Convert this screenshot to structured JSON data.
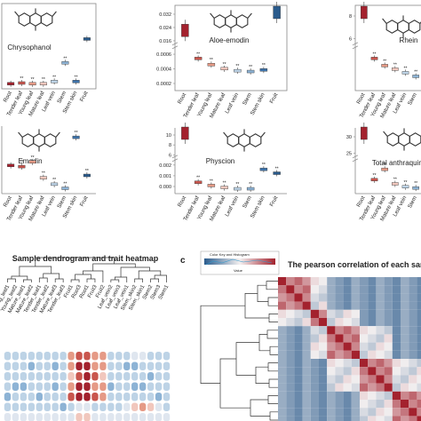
{
  "colors": {
    "dark_red": "#a3222e",
    "red": "#c9564e",
    "salmon": "#e59a86",
    "pale_red": "#f1c7bd",
    "pale_blue": "#bdd3e6",
    "light_blue": "#8db3d5",
    "blue": "#3f74ab",
    "dark_blue": "#2a5b8c",
    "grid": "#888888",
    "text": "#222222"
  },
  "chart_data": [
    {
      "type": "box",
      "panel": "top-left",
      "compound": "Chrysophanol",
      "categories": [
        "Root",
        "Tender leaf",
        "Young leaf",
        "Mature leaf",
        "Leaf vein",
        "Stem",
        "Stem skin",
        "Fruit"
      ],
      "values": [
        0.02,
        0.03,
        0.02,
        0.02,
        0.05,
        0.3,
        0.05,
        0.62
      ],
      "significance": [
        "",
        "**",
        "**",
        "**",
        "**",
        "**",
        "**",
        ""
      ],
      "ylim": [
        0,
        1
      ],
      "tick_labels_shown": false
    },
    {
      "type": "box",
      "panel": "top-center",
      "compound": "Aloe-emodin",
      "categories": [
        "Root",
        "Tender leaf",
        "Young leaf",
        "Mature leaf",
        "Leaf vein",
        "Stem",
        "Stem skin",
        "Fruit"
      ],
      "values": [
        0.019,
        0.0007,
        0.00055,
        0.00045,
        0.0004,
        0.00038,
        0.00042,
        0.025
      ],
      "significance": [
        "",
        "**",
        "**",
        "**",
        "**",
        "**",
        "**",
        ""
      ],
      "y_ticks_upper": [
        "0.032",
        "0.024",
        "0.016"
      ],
      "y_ticks_lower": [
        "0.0006",
        "0.0004",
        "0.0002"
      ],
      "axis_break": true
    },
    {
      "type": "box",
      "panel": "top-right",
      "compound": "Rhein",
      "categories": [
        "Root",
        "Tender leaf",
        "Young leaf",
        "Mature leaf",
        "Leaf vein",
        "Stem"
      ],
      "values": [
        8.2,
        0.4,
        0.3,
        0.25,
        0.2,
        0.15
      ],
      "significance": [
        "",
        "**",
        "**",
        "**",
        "**",
        "**"
      ],
      "y_ticks": [
        "8",
        "6"
      ],
      "axis_break": true
    },
    {
      "type": "box",
      "panel": "middle-left",
      "compound": "Emodin",
      "categories": [
        "Root",
        "Tender leaf",
        "Young leaf",
        "Mature leaf",
        "Leaf vein",
        "Stem",
        "Stem skin",
        "Fruit"
      ],
      "values": [
        0.42,
        0.4,
        0.48,
        0.21,
        0.1,
        0.03,
        0.9,
        0.25
      ],
      "significance": [
        "",
        "**",
        "**",
        "**",
        "**",
        "**",
        "**",
        "**"
      ],
      "ylim": [
        0,
        1
      ],
      "tick_labels_shown": false
    },
    {
      "type": "box",
      "panel": "middle-center",
      "compound": "Physcion",
      "categories": [
        "Root",
        "Tender leaf",
        "Young leaf",
        "Mature leaf",
        "Leaf vein",
        "Stem",
        "Stem skin",
        "Fruit"
      ],
      "values": [
        8.0,
        0.0006,
        0.00035,
        0.0002,
        0.0001,
        0.0001,
        0.0016,
        0.0013
      ],
      "significance": [
        "",
        "**",
        "**",
        "**",
        "**",
        "**",
        "**",
        "**"
      ],
      "y_ticks_upper": [
        "10",
        "8",
        "6"
      ],
      "y_ticks_lower": [
        "0.002",
        "0.001",
        "0.000"
      ],
      "axis_break": true
    },
    {
      "type": "box",
      "panel": "middle-right",
      "compound": "Total anthraquinones",
      "categories": [
        "Root",
        "Tender leaf",
        "Young leaf",
        "Mature leaf",
        "Leaf vein",
        "Stem"
      ],
      "values": [
        27.5,
        0.25,
        0.5,
        0.15,
        0.08,
        0.05
      ],
      "significance": [
        "",
        "**",
        "**",
        "**",
        "**",
        "**"
      ],
      "y_ticks": [
        "30",
        "25"
      ],
      "axis_break": true
    },
    {
      "type": "heatmap",
      "panel": "bottom-left",
      "title": "Sample dendrogram and trait heatmap",
      "samples": [
        "Young_leaf1",
        "Young_leaf2",
        "Mature_leaf1",
        "Mature_leaf2",
        "Tender_leaf1",
        "Tender_leaf2",
        "Mature_leaf3",
        "Tender_leaf3",
        "Fruit1",
        "Root3",
        "Root1",
        "Fruit3",
        "Fruit2",
        "Leaf_vein2",
        "Leaf_vein3",
        "Leaf_vein1",
        "Stem_skin2",
        "Stem_skin1",
        "Stem2",
        "Stem3",
        "Stem1"
      ]
    },
    {
      "type": "heatmap",
      "panel": "bottom-right",
      "panel_label": "c",
      "title": "The pearson correlation of each sample",
      "legend_title": "Color Key and Histogram",
      "legend_axis_label": "Value"
    }
  ]
}
